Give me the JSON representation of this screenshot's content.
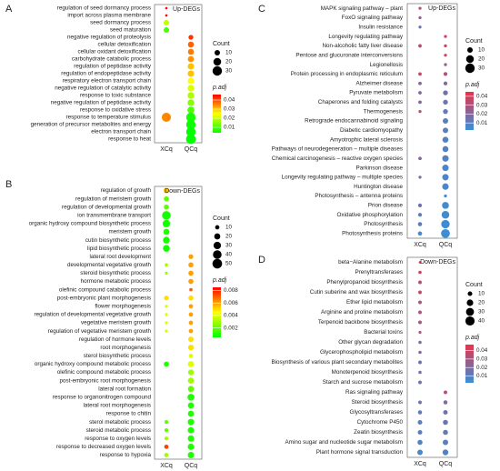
{
  "chart_data": [
    {
      "type": "dot",
      "panel": "A",
      "title": "Up-DEGs",
      "categories": [
        "regulation of seed dormancy process",
        "import across plasma membrane",
        "seed dormancy process",
        "seed maturation",
        "negative regulation of proteolysis",
        "cellular detoxification",
        "cellular oxidant detoxification",
        "carbohydrate catabolic process",
        "regulation of peptidase activity",
        "regulation of endopeptidase activity",
        "respiratory electron transport chain",
        "negative regulation of catalytic activity",
        "response to toxic substance",
        "negative regulation of peptidase activity",
        "response to oxidative stress",
        "response to temperature stimulus",
        "generation of precursor metabolites and energy",
        "electron transport chain",
        "response to heat"
      ],
      "series": [
        {
          "name": "XCq",
          "values": [
            2,
            2,
            10,
            10,
            null,
            null,
            null,
            null,
            null,
            null,
            null,
            null,
            null,
            null,
            null,
            28,
            null,
            null,
            null
          ],
          "padj": [
            0.045,
            0.045,
            0.02,
            0.01,
            null,
            null,
            null,
            null,
            null,
            null,
            null,
            null,
            null,
            null,
            null,
            0.035,
            null,
            null,
            null
          ]
        },
        {
          "name": "QCq",
          "values": [
            null,
            null,
            null,
            null,
            8,
            12,
            12,
            13,
            14,
            14,
            14,
            15,
            15,
            15,
            16,
            30,
            30,
            30,
            32
          ],
          "padj": [
            null,
            null,
            null,
            null,
            0.042,
            0.038,
            0.036,
            0.034,
            0.03,
            0.03,
            0.025,
            0.022,
            0.018,
            0.015,
            0.01,
            0.006,
            0.005,
            0.004,
            0.004
          ]
        }
      ],
      "size_title": "Count",
      "size_ticks": [
        10,
        20,
        30
      ],
      "color_title": "p.adj",
      "clim": [
        0.004,
        0.046
      ],
      "color_ticks": [
        0.01,
        0.02,
        0.03,
        0.04
      ],
      "colormap": [
        "#00ff00",
        "#ffff00",
        "#ff0000"
      ]
    },
    {
      "type": "dot",
      "panel": "B",
      "title": "Down-DEGs",
      "categories": [
        "regulation of growth",
        "regulation of meristem growth",
        "regulation of developmental growth",
        "ion transmembrane transport",
        "organic hydroxy compound biosynthetic process",
        "meristem growth",
        "cutin biosynthetic process",
        "lipid biosynthetic process",
        "lateral root development",
        "developmental vegetative growth",
        "steroid biosynthetic process",
        "hormone metabolic process",
        "olefinic compound catabolic process",
        "post-embryonic plant morphogenesis",
        "flower morphogenesis",
        "regulation of developmental vegetative growth",
        "vegetative meristem growth",
        "regulation of vegetative meristem growth",
        "regulation of hormone levels",
        "root morphogenesis",
        "sterol biosynthetic process",
        "organic hydroxy compound metabolic process",
        "olefinic compound metabolic process",
        "post-embryonic root morphogenesis",
        "lateral root formation",
        "response to organonitrogen compound",
        "lateral root morphogenesis",
        "response to chitin",
        "sterol metabolic process",
        "steroid metabolic process",
        "response to oxygen levels",
        "response to decreased oxygen levels",
        "response to hypoxia"
      ],
      "series": [
        {
          "name": "XCq",
          "values": [
            16,
            14,
            14,
            40,
            30,
            20,
            25,
            25,
            null,
            6,
            5,
            null,
            null,
            12,
            5,
            5,
            5,
            5,
            null,
            null,
            null,
            14,
            null,
            null,
            null,
            null,
            null,
            null,
            8,
            8,
            8,
            10,
            10
          ],
          "padj": [
            0.0055,
            0.002,
            0.002,
            0.0008,
            0.0008,
            0.001,
            0.0008,
            0.0008,
            null,
            0.003,
            0.003,
            null,
            null,
            0.005,
            0.004,
            0.004,
            0.004,
            0.004,
            null,
            null,
            null,
            0.001,
            null,
            null,
            null,
            null,
            null,
            null,
            0.002,
            0.002,
            0.003,
            0.0075,
            0.003
          ]
        },
        {
          "name": "QCq",
          "values": [
            null,
            null,
            null,
            null,
            null,
            null,
            null,
            null,
            12,
            14,
            14,
            14,
            6,
            14,
            10,
            10,
            10,
            10,
            16,
            18,
            10,
            20,
            18,
            20,
            20,
            25,
            20,
            20,
            22,
            22,
            22,
            22,
            22
          ],
          "padj": [
            null,
            null,
            null,
            null,
            null,
            null,
            null,
            null,
            0.006,
            0.006,
            0.006,
            0.006,
            0.007,
            0.005,
            0.006,
            0.006,
            0.006,
            0.006,
            0.005,
            0.005,
            0.004,
            0.004,
            0.003,
            0.003,
            0.002,
            0.001,
            0.001,
            0.001,
            0.001,
            0.001,
            0.001,
            0.001,
            0.001
          ]
        }
      ],
      "size_title": "Count",
      "size_ticks": [
        10,
        20,
        30,
        40,
        50
      ],
      "color_title": "p.adj",
      "clim": [
        0.0005,
        0.0085
      ],
      "color_ticks": [
        0.002,
        0.004,
        0.006,
        0.008
      ],
      "colormap": [
        "#00ff00",
        "#ffff00",
        "#ff0000"
      ]
    },
    {
      "type": "dot",
      "panel": "C",
      "title": "Up-DEGs",
      "categories": [
        "MAPK signaling pathway – plant",
        "FoxO signaling pathway",
        "Insulin resistance",
        "Longevity regulating pathway",
        "Non-alcoholic fatty liver disease",
        "Pentose and glucuronate interconversions",
        "Legionellosis",
        "Protein processing in endoplasmic reticulum",
        "Alzheimer disease",
        "Pyruvate metabolism",
        "Chaperones and folding catalysts",
        "Thermogenesis",
        "Retrograde endocannabinoid signaling",
        "Diabetic cardiomyopathy",
        "Amyotrophic lateral sclerosis",
        "Pathways of neurodegeneration – multiple diseases",
        "Chemical carcinogenesis – reactive oxygen species",
        "Parkinson disease",
        "Longevity regulating pathway – multiple species",
        "Huntington disease",
        "Photosynthesis – antenna proteins",
        "Prion disease",
        "Oxidative phosphorylation",
        "Photosynthesis",
        "Photosynthesis proteins"
      ],
      "series": [
        {
          "name": "XCq",
          "values": [
            3,
            3,
            3,
            null,
            4,
            null,
            null,
            4,
            4,
            4,
            4,
            3,
            null,
            null,
            null,
            null,
            4,
            null,
            3,
            null,
            null,
            5,
            5,
            6,
            6
          ],
          "padj": [
            0.03,
            0.025,
            0.015,
            null,
            0.035,
            null,
            null,
            0.035,
            0.02,
            0.02,
            0.02,
            0.03,
            null,
            null,
            null,
            null,
            0.02,
            null,
            0.02,
            null,
            null,
            0.015,
            0.01,
            0.01,
            0.005
          ]
        },
        {
          "name": "QCq",
          "values": [
            null,
            null,
            null,
            3,
            3,
            3,
            3,
            5,
            5,
            8,
            8,
            8,
            10,
            10,
            12,
            12,
            14,
            14,
            14,
            14,
            3,
            16,
            20,
            24,
            26
          ],
          "padj": [
            null,
            null,
            null,
            0.04,
            0.04,
            0.035,
            0.025,
            0.03,
            0.02,
            0.015,
            0.015,
            0.012,
            0.01,
            0.01,
            0.008,
            0.008,
            0.008,
            0.006,
            0.006,
            0.006,
            0.005,
            0.004,
            0.004,
            0.003,
            0.003
          ]
        }
      ],
      "size_title": "Count",
      "size_ticks": [
        10,
        20,
        30
      ],
      "color_title": "p.adj",
      "clim": [
        0.002,
        0.045
      ],
      "color_ticks": [
        0.01,
        0.02,
        0.03,
        0.04
      ],
      "colormap": [
        "#3a8fd6",
        "#e8334a"
      ]
    },
    {
      "type": "dot",
      "panel": "D",
      "title": "Down-DEGs",
      "categories": [
        "beta−Alanine metabolism",
        "Prenyltransferases",
        "Phenylpropanoid biosynthesis",
        "Cutin suberine and wax biosynthesis",
        "Ether lipid metabolism",
        "Arginine and proline metabolism",
        "Terpenoid backbone biosynthesis",
        "Bacterial toxins",
        "Other glycan degradation",
        "Glycerophospholipid metabolism",
        "Biosynthesis of various plant secondary metabolites",
        "Monoterpenoid biosynthesis",
        "Starch and sucrose metabolism",
        "Ras signaling pathway",
        "Steroid biosynthesis",
        "Glycosyltransferases",
        "Cytochrome P450",
        "Zeatin biosynthesis",
        "Amino sugar and nucleotide sugar metabolism",
        "Plant hormone signal transduction"
      ],
      "series": [
        {
          "name": "XCq",
          "values": [
            3,
            5,
            6,
            6,
            6,
            6,
            6,
            4,
            5,
            5,
            6,
            5,
            6,
            null,
            6,
            8,
            10,
            10,
            12,
            14
          ],
          "padj": [
            0.045,
            0.04,
            0.035,
            0.035,
            0.03,
            0.03,
            0.03,
            0.03,
            0.02,
            0.02,
            0.015,
            0.02,
            0.015,
            null,
            0.015,
            0.012,
            0.01,
            0.01,
            0.008,
            0.005
          ]
        },
        {
          "name": "QCq",
          "values": [
            null,
            null,
            null,
            null,
            null,
            null,
            null,
            null,
            null,
            null,
            null,
            null,
            null,
            6,
            8,
            10,
            12,
            12,
            14,
            16
          ],
          "padj": [
            null,
            null,
            null,
            null,
            null,
            null,
            null,
            null,
            null,
            null,
            null,
            null,
            null,
            0.035,
            0.02,
            0.015,
            0.015,
            0.012,
            0.01,
            0.008
          ]
        }
      ],
      "size_title": "Count",
      "size_ticks": [
        10,
        20,
        30,
        40
      ],
      "color_title": "p.adj",
      "clim": [
        0.002,
        0.047
      ],
      "color_ticks": [
        0.01,
        0.02,
        0.03,
        0.04
      ],
      "colormap": [
        "#3a8fd6",
        "#e8334a"
      ]
    }
  ]
}
